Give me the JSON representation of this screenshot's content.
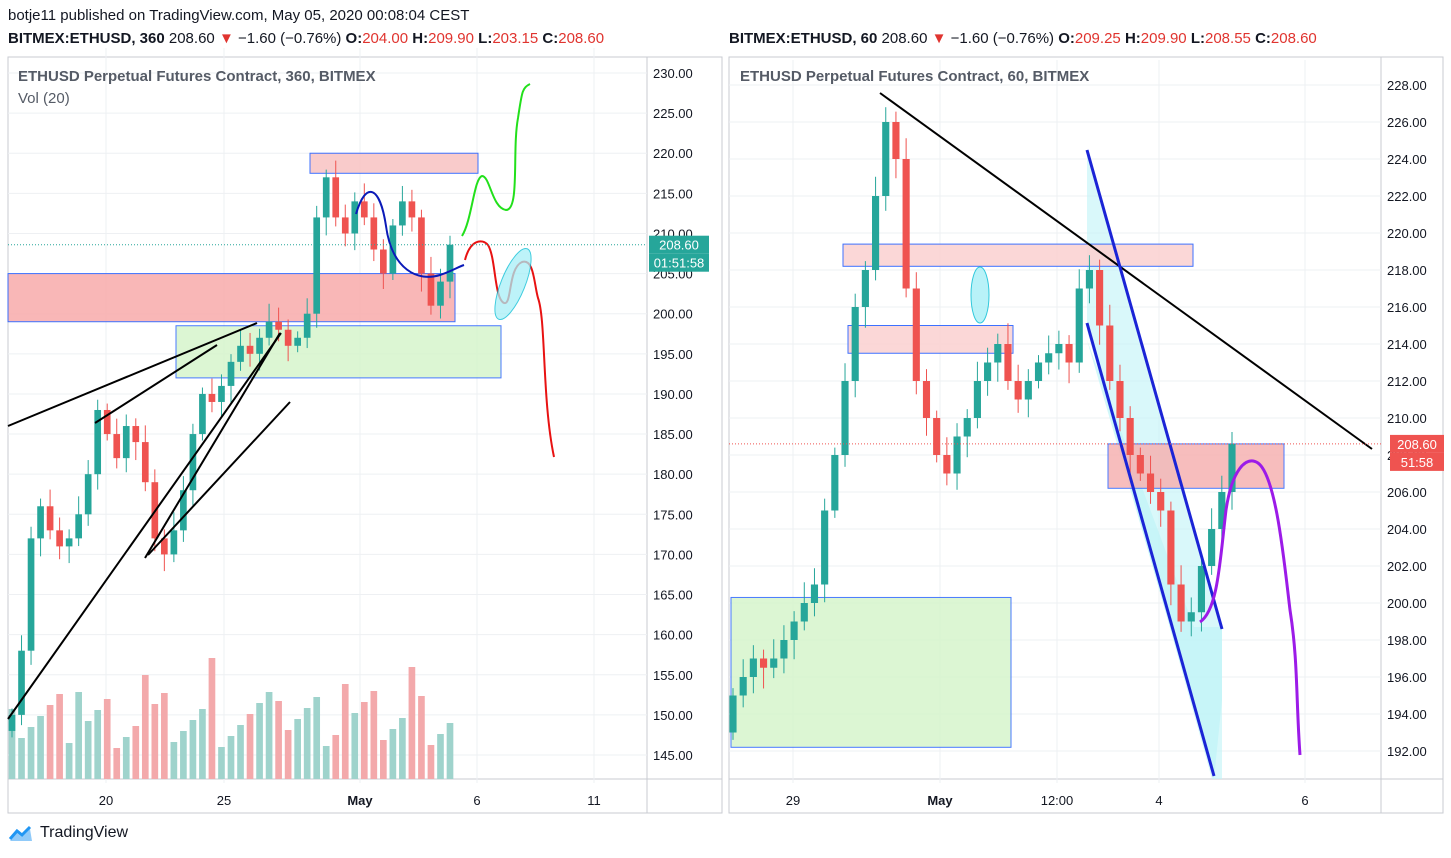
{
  "header": {
    "published_line": "botje11 published on TradingView.com, May 05, 2020 00:08:04 CEST",
    "left": {
      "symbol": "BITMEX:ETHUSD, 360",
      "price": "208.60",
      "arrow": "▼",
      "change": "−1.60 (−0.76%)",
      "o_label": "O:",
      "o": "204.00",
      "h_label": "H:",
      "h": "209.90",
      "l_label": "L:",
      "l": "203.15",
      "c_label": "C:",
      "c": "208.60"
    },
    "right": {
      "symbol": "BITMEX:ETHUSD, 60",
      "price": "208.60",
      "arrow": "▼",
      "change": "−1.60 (−0.76%)",
      "o_label": "O:",
      "o": "209.25",
      "h_label": "H:",
      "h": "209.90",
      "l_label": "L:",
      "l": "208.55",
      "c_label": "C:",
      "c": "208.60"
    }
  },
  "footer": {
    "brand": "TradingView"
  },
  "colors": {
    "up": "#26a69a",
    "down": "#ef5350",
    "text_red": "#e0342f"
  },
  "chart_data": [
    {
      "type": "candlestick",
      "title": "ETHUSD Perpetual Futures Contract, 360, BITMEX",
      "indicator": "Vol (20)",
      "y_ticks": [
        "230.00",
        "225.00",
        "220.00",
        "215.00",
        "210.00",
        "205.00",
        "200.00",
        "195.00",
        "190.00",
        "185.00",
        "180.00",
        "175.00",
        "170.00",
        "165.00",
        "160.00",
        "155.00",
        "150.00",
        "145.00"
      ],
      "ylim": [
        143,
        232
      ],
      "x_ticks": [
        "20",
        "25",
        "May",
        "6",
        "11"
      ],
      "last_price_label": "208.60",
      "countdown_label": "01:51:58",
      "last_price": 208.6,
      "close_series": [
        150,
        158,
        172,
        176,
        173,
        171,
        172,
        175,
        180,
        188,
        185,
        182,
        186,
        184,
        179,
        172,
        170,
        173,
        178,
        185,
        190,
        189,
        191,
        194,
        196,
        195,
        197,
        199,
        198,
        196,
        197,
        200,
        212,
        217,
        212,
        210,
        214,
        212,
        208,
        205,
        211,
        214,
        212,
        205,
        201,
        204,
        208.6
      ],
      "annotations": {
        "zones": [
          {
            "color": "red",
            "price_low": 199,
            "price_high": 205
          },
          {
            "color": "red",
            "price_low": 217.5,
            "price_high": 220
          },
          {
            "color": "green",
            "price_low": 192,
            "price_high": 198.5
          }
        ],
        "projection_up_target": 229,
        "projection_down_target": 182
      }
    },
    {
      "type": "candlestick",
      "title": "ETHUSD Perpetual Futures Contract, 60, BITMEX",
      "y_ticks": [
        "228.00",
        "226.00",
        "224.00",
        "222.00",
        "220.00",
        "218.00",
        "216.00",
        "214.00",
        "212.00",
        "210.00",
        "208.00",
        "206.00",
        "204.00",
        "202.00",
        "200.00",
        "198.00",
        "196.00",
        "194.00",
        "192.00"
      ],
      "ylim": [
        191,
        228.7
      ],
      "x_ticks": [
        "29",
        "May",
        "12:00",
        "4",
        "6"
      ],
      "last_price_label": "208.60",
      "countdown_label": "51:58",
      "last_price": 208.6,
      "close_series": [
        195,
        196,
        197,
        196.5,
        197,
        198,
        199,
        200,
        201,
        205,
        208,
        212,
        216,
        218,
        222,
        226,
        224,
        217,
        212,
        210,
        208,
        207,
        209,
        210,
        212,
        213,
        214,
        212,
        211,
        212,
        213,
        213.5,
        214,
        213,
        217,
        218,
        215,
        212,
        210,
        208,
        207,
        206,
        205,
        201,
        199,
        199.5,
        202,
        204,
        206,
        208.6
      ],
      "annotations": {
        "zones": [
          {
            "color": "red",
            "price_low": 218.2,
            "price_high": 219.4
          },
          {
            "color": "red",
            "price_low": 213.5,
            "price_high": 215
          },
          {
            "color": "red",
            "price_low": 206.2,
            "price_high": 208.6
          },
          {
            "color": "green",
            "price_low": 192.2,
            "price_high": 200.3
          }
        ],
        "projection_down_target": 192
      }
    }
  ]
}
